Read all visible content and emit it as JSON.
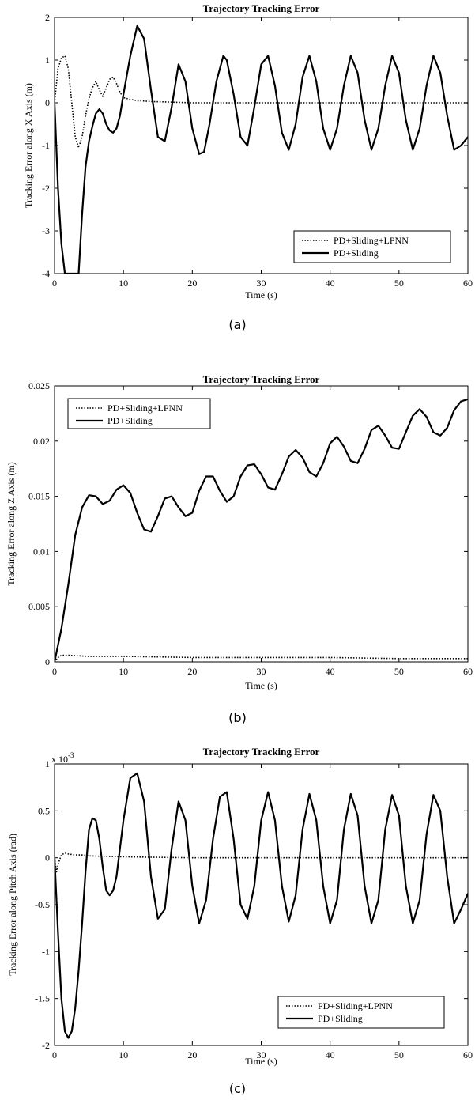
{
  "chart_data": [
    {
      "type": "line",
      "title": "Trajectory Tracking Error",
      "xlabel": "Time (s)",
      "ylabel": "Tracking Error along X Axis (m)",
      "caption": "(a)",
      "xlim": [
        0,
        60
      ],
      "ylim": [
        -4,
        2
      ],
      "xticks": [
        0,
        10,
        20,
        30,
        40,
        50,
        60
      ],
      "yticks": [
        -4,
        -3,
        -2,
        -1,
        0,
        1,
        2
      ],
      "yticklabels": [
        "-4",
        "-3",
        "-2",
        "-1",
        "0",
        "1",
        "2"
      ],
      "multiplier": "",
      "grid": false,
      "legend_position": "bottom-right",
      "series": [
        {
          "name": "PD+Sliding+LPNN",
          "style": "dotted",
          "x": [
            0,
            0.5,
            1.0,
            1.5,
            2.0,
            2.5,
            3.0,
            3.5,
            4.0,
            4.5,
            5.0,
            5.5,
            6.0,
            6.5,
            7.0,
            7.5,
            8.0,
            8.5,
            9.0,
            9.5,
            10.0,
            11.0,
            12.0,
            14.0,
            16.0,
            20.0,
            30.0,
            40.0,
            50.0,
            60.0
          ],
          "y": [
            0.0,
            0.8,
            1.05,
            1.1,
            0.8,
            0.0,
            -0.8,
            -1.05,
            -0.8,
            -0.3,
            0.1,
            0.35,
            0.5,
            0.3,
            0.15,
            0.35,
            0.55,
            0.6,
            0.45,
            0.25,
            0.12,
            0.08,
            0.05,
            0.03,
            0.02,
            0.0,
            0.0,
            0.0,
            0.0,
            0.0
          ]
        },
        {
          "name": "PD+Sliding",
          "style": "solid",
          "x": [
            0,
            0.5,
            1.0,
            1.5,
            2.0,
            2.5,
            3.0,
            3.5,
            4.0,
            4.5,
            5.0,
            5.5,
            6.0,
            6.5,
            7.0,
            7.5,
            8.0,
            8.5,
            9.0,
            9.5,
            10.0,
            11.0,
            12.0,
            13.0,
            14.0,
            15.0,
            16.0,
            17.0,
            18.0,
            19.0,
            20.0,
            21.0,
            21.7,
            22.5,
            23.5,
            24.5,
            25.0,
            26.0,
            27.0,
            28.0,
            29.0,
            30.0,
            31.0,
            32.0,
            33.0,
            34.0,
            35.0,
            36.0,
            37.0,
            38.0,
            39.0,
            40.0,
            41.0,
            42.0,
            43.0,
            44.0,
            45.0,
            46.0,
            47.0,
            48.0,
            49.0,
            50.0,
            51.0,
            52.0,
            53.0,
            54.0,
            55.0,
            56.0,
            57.0,
            58.0,
            59.0,
            60.0
          ],
          "y": [
            0.0,
            -2.0,
            -3.3,
            -4.0,
            -4.0,
            -4.0,
            -4.0,
            -4.0,
            -2.6,
            -1.5,
            -0.9,
            -0.55,
            -0.25,
            -0.15,
            -0.25,
            -0.5,
            -0.65,
            -0.7,
            -0.6,
            -0.3,
            0.2,
            1.1,
            1.8,
            1.5,
            0.3,
            -0.8,
            -0.9,
            -0.1,
            0.9,
            0.5,
            -0.6,
            -1.2,
            -1.15,
            -0.5,
            0.5,
            1.1,
            1.0,
            0.2,
            -0.8,
            -1.0,
            -0.1,
            0.9,
            1.1,
            0.4,
            -0.7,
            -1.1,
            -0.5,
            0.6,
            1.1,
            0.5,
            -0.6,
            -1.1,
            -0.6,
            0.4,
            1.1,
            0.7,
            -0.4,
            -1.1,
            -0.6,
            0.4,
            1.1,
            0.7,
            -0.4,
            -1.1,
            -0.6,
            0.4,
            1.1,
            0.7,
            -0.3,
            -1.1,
            -1.0,
            -0.8
          ]
        }
      ]
    },
    {
      "type": "line",
      "title": "Trajectory Tracking Error",
      "xlabel": "Time (s)",
      "ylabel": "Tracking Error along Z Axis (m)",
      "caption": "(b)",
      "xlim": [
        0,
        60
      ],
      "ylim": [
        0,
        0.025
      ],
      "xticks": [
        0,
        10,
        20,
        30,
        40,
        50,
        60
      ],
      "yticks": [
        0,
        0.005,
        0.01,
        0.015,
        0.02,
        0.025
      ],
      "yticklabels": [
        "0",
        "0.005",
        "0.01",
        "0.015",
        "0.02",
        "0.025"
      ],
      "multiplier": "",
      "grid": false,
      "legend_position": "top-left",
      "series": [
        {
          "name": "PD+Sliding+LPNN",
          "style": "dotted",
          "x": [
            0,
            0.5,
            1.0,
            2.0,
            5.0,
            10.0,
            20.0,
            30.0,
            40.0,
            50.0,
            60.0
          ],
          "y": [
            0.0,
            0.0004,
            0.0006,
            0.0006,
            0.0005,
            0.0005,
            0.0004,
            0.0004,
            0.0004,
            0.0003,
            0.0003
          ],
          "style_note": ""
        },
        {
          "name": "PD+Sliding",
          "style": "solid",
          "x": [
            0,
            1.0,
            2.0,
            3.0,
            4.0,
            5.0,
            6.0,
            7.0,
            8.0,
            9.0,
            10.0,
            11.0,
            12.0,
            13.0,
            14.0,
            15.0,
            16.0,
            17.0,
            18.0,
            19.0,
            20.0,
            21.0,
            22.0,
            23.0,
            24.0,
            25.0,
            26.0,
            27.0,
            28.0,
            29.0,
            30.0,
            31.0,
            32.0,
            33.0,
            34.0,
            35.0,
            36.0,
            37.0,
            38.0,
            39.0,
            40.0,
            41.0,
            42.0,
            43.0,
            44.0,
            45.0,
            46.0,
            47.0,
            48.0,
            49.0,
            50.0,
            51.0,
            52.0,
            53.0,
            54.0,
            55.0,
            56.0,
            57.0,
            58.0,
            59.0,
            60.0
          ],
          "y": [
            0.0,
            0.003,
            0.007,
            0.0115,
            0.014,
            0.0151,
            0.015,
            0.0143,
            0.0146,
            0.0156,
            0.016,
            0.0153,
            0.0135,
            0.012,
            0.0118,
            0.0132,
            0.0148,
            0.015,
            0.014,
            0.0132,
            0.0135,
            0.0155,
            0.0168,
            0.0168,
            0.0155,
            0.0145,
            0.015,
            0.0168,
            0.0178,
            0.0179,
            0.017,
            0.0158,
            0.0156,
            0.017,
            0.0186,
            0.0192,
            0.0185,
            0.0172,
            0.0168,
            0.018,
            0.0198,
            0.0204,
            0.0195,
            0.0182,
            0.018,
            0.0193,
            0.021,
            0.0214,
            0.0205,
            0.0194,
            0.0193,
            0.0208,
            0.0223,
            0.0229,
            0.0222,
            0.0208,
            0.0205,
            0.0212,
            0.0228,
            0.0236,
            0.0238
          ]
        }
      ]
    },
    {
      "type": "line",
      "title": "Trajectory Tracking Error",
      "xlabel": "Time (s)",
      "ylabel": "Tracking Error along Pitch Axis (rad)",
      "caption": "(c)",
      "xlim": [
        0,
        60
      ],
      "ylim": [
        -2,
        1
      ],
      "xticks": [
        0,
        10,
        20,
        30,
        40,
        50,
        60
      ],
      "yticks": [
        -2,
        -1.5,
        -1,
        -0.5,
        0,
        0.5,
        1
      ],
      "yticklabels": [
        "-2",
        "-1.5",
        "-1",
        "-0.5",
        "0",
        "0.5",
        "1"
      ],
      "multiplier": "x 10",
      "multiplier_exp": "-3",
      "grid": false,
      "legend_position": "bottom-right",
      "series": [
        {
          "name": "PD+Sliding+LPNN",
          "style": "dotted",
          "x": [
            0,
            0.3,
            0.6,
            1.0,
            1.5,
            2.0,
            3.0,
            4.0,
            5.0,
            10.0,
            20.0,
            30.0,
            40.0,
            50.0,
            60.0
          ],
          "y": [
            0.0,
            -0.15,
            -0.05,
            0.03,
            0.05,
            0.04,
            0.03,
            0.03,
            0.02,
            0.01,
            0.0,
            0.0,
            0.0,
            0.0,
            0.0
          ]
        },
        {
          "name": "PD+Sliding",
          "style": "solid",
          "x": [
            0,
            0.5,
            1.0,
            1.5,
            2.0,
            2.5,
            3.0,
            3.5,
            4.0,
            4.5,
            5.0,
            5.5,
            6.0,
            6.5,
            7.0,
            7.5,
            8.0,
            8.5,
            9.0,
            9.5,
            10.0,
            11.0,
            12.0,
            13.0,
            14.0,
            15.0,
            16.0,
            17.0,
            18.0,
            19.0,
            20.0,
            21.0,
            22.0,
            23.0,
            24.0,
            25.0,
            26.0,
            27.0,
            28.0,
            29.0,
            30.0,
            31.0,
            32.0,
            33.0,
            34.0,
            35.0,
            36.0,
            37.0,
            38.0,
            39.0,
            40.0,
            41.0,
            42.0,
            43.0,
            44.0,
            45.0,
            46.0,
            47.0,
            48.0,
            49.0,
            50.0,
            51.0,
            52.0,
            53.0,
            54.0,
            55.0,
            56.0,
            57.0,
            58.0,
            59.0,
            60.0
          ],
          "y": [
            0.0,
            -0.8,
            -1.5,
            -1.85,
            -1.92,
            -1.85,
            -1.6,
            -1.2,
            -0.7,
            -0.15,
            0.3,
            0.42,
            0.4,
            0.2,
            -0.1,
            -0.35,
            -0.4,
            -0.35,
            -0.2,
            0.1,
            0.4,
            0.85,
            0.9,
            0.6,
            -0.2,
            -0.65,
            -0.55,
            0.1,
            0.6,
            0.4,
            -0.3,
            -0.7,
            -0.45,
            0.2,
            0.65,
            0.7,
            0.2,
            -0.5,
            -0.65,
            -0.3,
            0.4,
            0.7,
            0.4,
            -0.3,
            -0.68,
            -0.4,
            0.3,
            0.68,
            0.4,
            -0.3,
            -0.7,
            -0.45,
            0.3,
            0.68,
            0.45,
            -0.3,
            -0.7,
            -0.45,
            0.3,
            0.67,
            0.45,
            -0.3,
            -0.7,
            -0.45,
            0.25,
            0.67,
            0.5,
            -0.2,
            -0.7,
            -0.55,
            -0.38
          ]
        }
      ]
    }
  ]
}
